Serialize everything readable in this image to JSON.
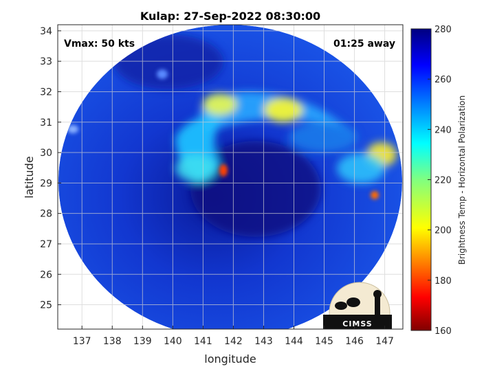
{
  "title": "Kulap: 27-Sep-2022 08:30:00",
  "xlabel": "longitude",
  "ylabel": "latitude",
  "annotations": {
    "vmax": "Vmax: 50 kts",
    "away": "01:25 away"
  },
  "colorbar": {
    "label": "Brightness Temp - Horizontal Polarization",
    "min": 160,
    "max": 280,
    "ticks": [
      "160",
      "180",
      "200",
      "220",
      "240",
      "260",
      "280"
    ],
    "colors": [
      "#800000",
      "#ff0000",
      "#ff8000",
      "#ffff00",
      "#80ff80",
      "#00ffff",
      "#0080ff",
      "#0000ff",
      "#000080"
    ]
  },
  "logo": {
    "text": "CIMSS"
  },
  "chart_data": {
    "type": "heatmap",
    "title": "Kulap: 27-Sep-2022 08:30:00",
    "xlabel": "longitude",
    "ylabel": "latitude",
    "xlim": [
      136.2,
      147.6
    ],
    "ylim": [
      24.2,
      34.2
    ],
    "xticks": [
      "137",
      "138",
      "139",
      "140",
      "141",
      "142",
      "143",
      "144",
      "145",
      "146",
      "147"
    ],
    "yticks": [
      "25",
      "26",
      "27",
      "28",
      "29",
      "30",
      "31",
      "32",
      "33",
      "34"
    ],
    "grid": true,
    "colorbar_label": "Brightness Temp - Horizontal Polarization",
    "colorbar_range": [
      160,
      280
    ]
  }
}
